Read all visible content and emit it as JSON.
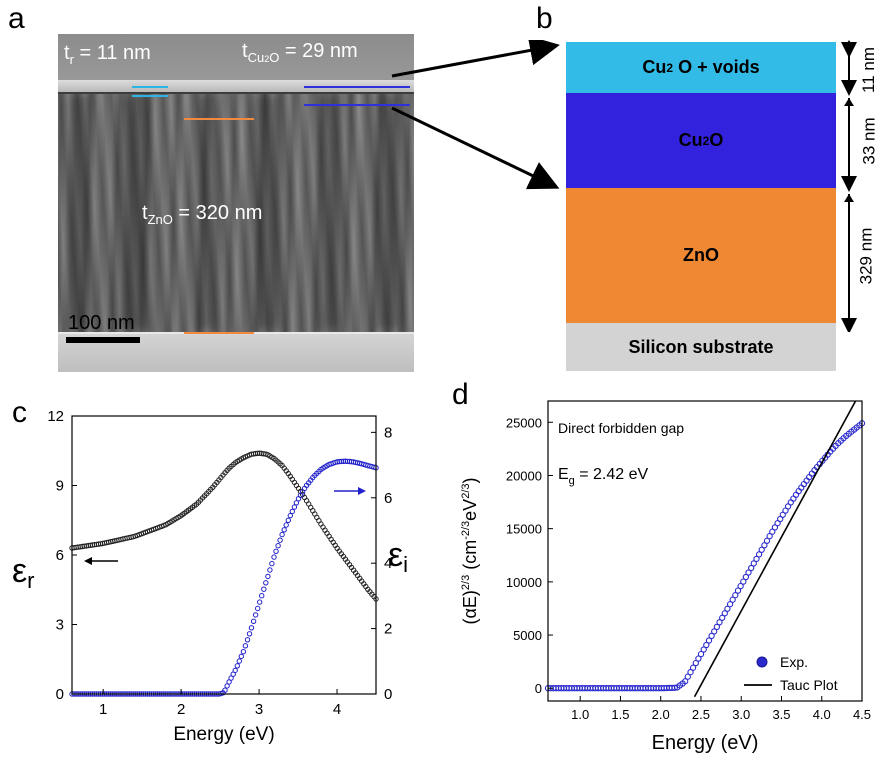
{
  "panels": {
    "a": "a",
    "b": "b",
    "c": "c",
    "d": "d"
  },
  "tem": {
    "tr_main": "t",
    "tr_sub": "r",
    "tr_value": " = 11 nm",
    "tcu_main": "t",
    "tcu_sub": "Cu",
    "tcu_sub2": "2",
    "tcu_sub3": "O",
    "tcu_value": " = 29 nm",
    "tzno_main": "t",
    "tzno_sub": "ZnO",
    "tzno_value": " =  320 nm",
    "scalebar": "100 nm",
    "colors": {
      "cyan_mark": "#29b6e6",
      "blue_mark": "#3030d8",
      "orange_mark": "#f08a3c"
    }
  },
  "stack": {
    "layers": [
      {
        "main": "Cu",
        "sub": "2",
        "rest": "O + voids",
        "color": "#33bbe8",
        "thickness": "11 nm"
      },
      {
        "main": "Cu",
        "sub": "2",
        "rest": "O",
        "color": "#3322dd",
        "thickness": "33 nm"
      },
      {
        "main": "ZnO",
        "sub": "",
        "rest": "",
        "color": "#ee8833",
        "thickness": "329 nm"
      },
      {
        "main": "Silicon substrate",
        "sub": "",
        "rest": "",
        "color": "#d3d3d3",
        "thickness": ""
      }
    ]
  },
  "chart_data": [
    {
      "type": "line",
      "panel": "c",
      "xlabel": "Energy (eV)",
      "ylabel_left": "εr",
      "ylabel_right": "εi",
      "xlim": [
        0.6,
        4.5
      ],
      "ylim_left": [
        0,
        12
      ],
      "ylim_right": [
        0,
        8.5
      ],
      "xticks": [
        "1",
        "2",
        "3",
        "4"
      ],
      "yticks_left": [
        "0",
        "3",
        "6",
        "9",
        "12"
      ],
      "yticks_right": [
        "0",
        "2",
        "4",
        "6",
        "8"
      ],
      "series": [
        {
          "axis": "left",
          "color": "#222222",
          "x": [
            0.6,
            1.0,
            1.4,
            1.8,
            2.0,
            2.2,
            2.4,
            2.5,
            2.6,
            2.7,
            2.8,
            2.9,
            3.0,
            3.1,
            3.2,
            3.3,
            3.4,
            3.6,
            3.8,
            4.0,
            4.2,
            4.4,
            4.5
          ],
          "y": [
            6.3,
            6.5,
            6.8,
            7.3,
            7.7,
            8.2,
            8.9,
            9.3,
            9.7,
            10.0,
            10.2,
            10.35,
            10.4,
            10.35,
            10.15,
            9.85,
            9.4,
            8.4,
            7.3,
            6.3,
            5.4,
            4.5,
            4.1
          ]
        },
        {
          "axis": "right",
          "color": "#2222cc",
          "x": [
            0.6,
            1.0,
            1.5,
            2.0,
            2.4,
            2.5,
            2.55,
            2.6,
            2.7,
            2.8,
            2.9,
            3.0,
            3.1,
            3.2,
            3.3,
            3.4,
            3.5,
            3.6,
            3.7,
            3.8,
            3.9,
            4.0,
            4.1,
            4.2,
            4.3,
            4.4,
            4.5
          ],
          "y": [
            0,
            0,
            0,
            0,
            0,
            0.0,
            0.05,
            0.3,
            0.75,
            1.3,
            2.0,
            2.75,
            3.5,
            4.25,
            4.9,
            5.45,
            5.95,
            6.35,
            6.65,
            6.88,
            7.02,
            7.1,
            7.12,
            7.1,
            7.05,
            6.98,
            6.92
          ]
        }
      ]
    },
    {
      "type": "scatter",
      "panel": "d",
      "annotation": "Direct forbidden gap",
      "eg_main": "E",
      "eg_sub": "g",
      "eg_value": " = 2.42 eV",
      "xlabel": "Energy (eV)",
      "ylabel": "(αE)2/3 (cm-2/3eV2/3)",
      "xlim": [
        0.6,
        4.5
      ],
      "ylim": [
        -1200,
        27000
      ],
      "xticks": [
        "1.0",
        "1.5",
        "2.0",
        "2.5",
        "3.0",
        "3.5",
        "4.0",
        "4.5"
      ],
      "yticks": [
        "0",
        "5000",
        "10000",
        "15000",
        "20000",
        "25000"
      ],
      "legend": [
        "Exp.",
        "Tauc Plot"
      ],
      "series": [
        {
          "name": "Exp.",
          "color": "#2a2acc",
          "x": [
            0.6,
            1.0,
            1.5,
            2.0,
            2.2,
            2.3,
            2.4,
            2.5,
            2.6,
            2.7,
            2.8,
            2.9,
            3.0,
            3.1,
            3.2,
            3.3,
            3.4,
            3.5,
            3.6,
            3.7,
            3.8,
            3.9,
            4.0,
            4.1,
            4.2,
            4.3,
            4.4,
            4.5
          ],
          "y": [
            0,
            0,
            0,
            0,
            50,
            600,
            1900,
            3200,
            4500,
            5800,
            7100,
            8400,
            9700,
            11000,
            12300,
            13600,
            14900,
            16100,
            17300,
            18400,
            19400,
            20400,
            21300,
            22200,
            23000,
            23700,
            24300,
            24900
          ]
        },
        {
          "name": "Tauc Plot",
          "color": "#000000",
          "x": [
            2.42,
            4.42
          ],
          "y": [
            -800,
            27000
          ]
        }
      ]
    }
  ]
}
